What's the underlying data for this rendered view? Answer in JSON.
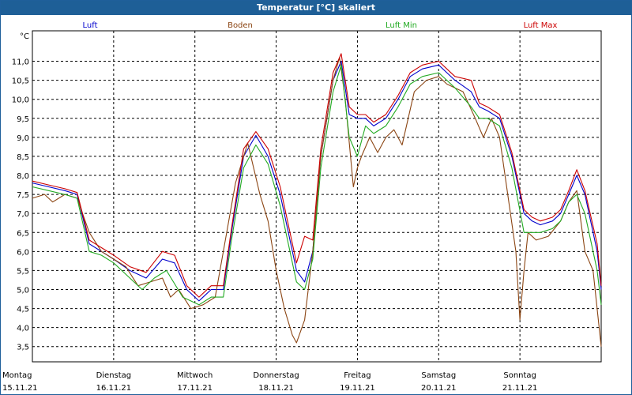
{
  "chart_data": {
    "type": "line",
    "title": "Temperatur [°C] skaliert",
    "ylabel": "°C",
    "ylim": [
      3.1,
      11.8
    ],
    "yticks": [
      "11,0",
      "10,5",
      "10,0",
      "9,5",
      "9,0",
      "8,5",
      "8,0",
      "7,5",
      "7,0",
      "6,5",
      "6,0",
      "5,5",
      "5,0",
      "4,5",
      "4,0",
      "3,5"
    ],
    "ytick_values": [
      11.0,
      10.5,
      10.0,
      9.5,
      9.0,
      8.5,
      8.0,
      7.5,
      7.0,
      6.5,
      6.0,
      5.5,
      5.0,
      4.5,
      4.0,
      3.5
    ],
    "xlim": [
      0,
      7
    ],
    "days": [
      {
        "day": "Montag",
        "date": "15.11.21",
        "x": 0
      },
      {
        "day": "Dienstag",
        "date": "16.11.21",
        "x": 1
      },
      {
        "day": "Mittwoch",
        "date": "17.11.21",
        "x": 2
      },
      {
        "day": "Donnerstag",
        "date": "18.11.21",
        "x": 3
      },
      {
        "day": "Freitag",
        "date": "19.11.21",
        "x": 4
      },
      {
        "day": "Samstag",
        "date": "20.11.21",
        "x": 5
      },
      {
        "day": "Sonntag",
        "date": "21.11.21",
        "x": 6
      }
    ],
    "series": [
      {
        "name": "Luft",
        "color": "#0000cc",
        "points": [
          [
            0,
            7.8
          ],
          [
            0.2,
            7.7
          ],
          [
            0.4,
            7.6
          ],
          [
            0.55,
            7.5
          ],
          [
            0.7,
            6.2
          ],
          [
            0.85,
            6.0
          ],
          [
            1.0,
            5.8
          ],
          [
            1.2,
            5.5
          ],
          [
            1.4,
            5.3
          ],
          [
            1.6,
            5.8
          ],
          [
            1.75,
            5.7
          ],
          [
            1.9,
            5.0
          ],
          [
            2.05,
            4.7
          ],
          [
            2.2,
            5.0
          ],
          [
            2.35,
            5.0
          ],
          [
            2.45,
            6.5
          ],
          [
            2.6,
            8.5
          ],
          [
            2.75,
            9.05
          ],
          [
            2.9,
            8.5
          ],
          [
            3.05,
            7.5
          ],
          [
            3.15,
            6.5
          ],
          [
            3.25,
            5.5
          ],
          [
            3.35,
            5.2
          ],
          [
            3.45,
            6.0
          ],
          [
            3.55,
            8.5
          ],
          [
            3.7,
            10.5
          ],
          [
            3.8,
            11.0
          ],
          [
            3.9,
            9.6
          ],
          [
            4.0,
            9.5
          ],
          [
            4.1,
            9.5
          ],
          [
            4.2,
            9.3
          ],
          [
            4.35,
            9.5
          ],
          [
            4.5,
            10.0
          ],
          [
            4.65,
            10.6
          ],
          [
            4.8,
            10.8
          ],
          [
            5.0,
            10.9
          ],
          [
            5.1,
            10.7
          ],
          [
            5.2,
            10.5
          ],
          [
            5.4,
            10.2
          ],
          [
            5.5,
            9.8
          ],
          [
            5.6,
            9.7
          ],
          [
            5.75,
            9.5
          ],
          [
            5.9,
            8.5
          ],
          [
            6.05,
            7.0
          ],
          [
            6.15,
            6.8
          ],
          [
            6.25,
            6.7
          ],
          [
            6.4,
            6.8
          ],
          [
            6.5,
            7.0
          ],
          [
            6.6,
            7.5
          ],
          [
            6.7,
            8.0
          ],
          [
            6.8,
            7.5
          ],
          [
            6.95,
            6.0
          ],
          [
            7.0,
            5.0
          ]
        ]
      },
      {
        "name": "Boden",
        "color": "#8b4513",
        "points": [
          [
            0,
            7.4
          ],
          [
            0.15,
            7.5
          ],
          [
            0.25,
            7.3
          ],
          [
            0.4,
            7.5
          ],
          [
            0.55,
            7.4
          ],
          [
            0.7,
            6.5
          ],
          [
            0.85,
            6.0
          ],
          [
            1.0,
            5.8
          ],
          [
            1.15,
            5.6
          ],
          [
            1.3,
            5.1
          ],
          [
            1.45,
            5.2
          ],
          [
            1.6,
            5.3
          ],
          [
            1.7,
            4.8
          ],
          [
            1.8,
            5.0
          ],
          [
            1.95,
            4.5
          ],
          [
            2.1,
            4.6
          ],
          [
            2.25,
            4.8
          ],
          [
            2.35,
            6.0
          ],
          [
            2.5,
            7.8
          ],
          [
            2.65,
            8.85
          ],
          [
            2.8,
            7.5
          ],
          [
            2.9,
            6.8
          ],
          [
            3.0,
            5.5
          ],
          [
            3.1,
            4.5
          ],
          [
            3.2,
            3.8
          ],
          [
            3.25,
            3.6
          ],
          [
            3.35,
            4.2
          ],
          [
            3.45,
            6.0
          ],
          [
            3.55,
            8.5
          ],
          [
            3.7,
            10.5
          ],
          [
            3.78,
            11.1
          ],
          [
            3.85,
            10.0
          ],
          [
            3.95,
            7.7
          ],
          [
            4.0,
            8.2
          ],
          [
            4.05,
            8.5
          ],
          [
            4.15,
            9.0
          ],
          [
            4.25,
            8.6
          ],
          [
            4.35,
            9.0
          ],
          [
            4.45,
            9.2
          ],
          [
            4.55,
            8.8
          ],
          [
            4.7,
            10.2
          ],
          [
            4.85,
            10.5
          ],
          [
            5.0,
            10.6
          ],
          [
            5.1,
            10.4
          ],
          [
            5.2,
            10.3
          ],
          [
            5.3,
            10.2
          ],
          [
            5.45,
            9.5
          ],
          [
            5.55,
            9.0
          ],
          [
            5.65,
            9.5
          ],
          [
            5.75,
            9.0
          ],
          [
            5.85,
            7.5
          ],
          [
            5.95,
            6.0
          ],
          [
            6.0,
            4.2
          ],
          [
            6.05,
            5.5
          ],
          [
            6.1,
            6.5
          ],
          [
            6.2,
            6.3
          ],
          [
            6.35,
            6.4
          ],
          [
            6.5,
            6.8
          ],
          [
            6.6,
            7.3
          ],
          [
            6.7,
            7.6
          ],
          [
            6.8,
            6.0
          ],
          [
            6.9,
            5.5
          ],
          [
            7.0,
            3.5
          ]
        ]
      },
      {
        "name": "Luft Min",
        "color": "#22aa22",
        "points": [
          [
            0,
            7.7
          ],
          [
            0.2,
            7.6
          ],
          [
            0.4,
            7.5
          ],
          [
            0.55,
            7.4
          ],
          [
            0.7,
            6.0
          ],
          [
            0.85,
            5.9
          ],
          [
            1.0,
            5.7
          ],
          [
            1.2,
            5.3
          ],
          [
            1.35,
            5.0
          ],
          [
            1.5,
            5.3
          ],
          [
            1.65,
            5.5
          ],
          [
            1.85,
            4.8
          ],
          [
            2.05,
            4.6
          ],
          [
            2.2,
            4.8
          ],
          [
            2.35,
            4.8
          ],
          [
            2.45,
            6.3
          ],
          [
            2.6,
            8.2
          ],
          [
            2.75,
            8.8
          ],
          [
            2.9,
            8.3
          ],
          [
            3.05,
            7.2
          ],
          [
            3.15,
            6.2
          ],
          [
            3.25,
            5.2
          ],
          [
            3.35,
            5.0
          ],
          [
            3.45,
            5.8
          ],
          [
            3.55,
            8.2
          ],
          [
            3.7,
            10.2
          ],
          [
            3.8,
            10.9
          ],
          [
            3.9,
            9.0
          ],
          [
            4.0,
            8.5
          ],
          [
            4.1,
            9.3
          ],
          [
            4.2,
            9.1
          ],
          [
            4.35,
            9.3
          ],
          [
            4.5,
            9.8
          ],
          [
            4.65,
            10.4
          ],
          [
            4.8,
            10.6
          ],
          [
            5.0,
            10.7
          ],
          [
            5.1,
            10.5
          ],
          [
            5.2,
            10.3
          ],
          [
            5.4,
            9.8
          ],
          [
            5.5,
            9.5
          ],
          [
            5.6,
            9.5
          ],
          [
            5.75,
            9.3
          ],
          [
            5.9,
            8.2
          ],
          [
            6.05,
            6.5
          ],
          [
            6.15,
            6.5
          ],
          [
            6.25,
            6.5
          ],
          [
            6.4,
            6.6
          ],
          [
            6.5,
            6.8
          ],
          [
            6.6,
            7.3
          ],
          [
            6.7,
            7.5
          ],
          [
            6.8,
            7.0
          ],
          [
            6.95,
            5.5
          ],
          [
            7.0,
            4.6
          ]
        ]
      },
      {
        "name": "Luft Max",
        "color": "#cc0000",
        "points": [
          [
            0,
            7.85
          ],
          [
            0.2,
            7.75
          ],
          [
            0.4,
            7.65
          ],
          [
            0.55,
            7.55
          ],
          [
            0.7,
            6.3
          ],
          [
            0.85,
            6.1
          ],
          [
            1.0,
            5.9
          ],
          [
            1.2,
            5.6
          ],
          [
            1.4,
            5.45
          ],
          [
            1.6,
            6.0
          ],
          [
            1.75,
            5.9
          ],
          [
            1.9,
            5.1
          ],
          [
            2.05,
            4.8
          ],
          [
            2.2,
            5.1
          ],
          [
            2.35,
            5.1
          ],
          [
            2.45,
            6.6
          ],
          [
            2.6,
            8.7
          ],
          [
            2.75,
            9.15
          ],
          [
            2.9,
            8.7
          ],
          [
            3.05,
            7.7
          ],
          [
            3.15,
            6.7
          ],
          [
            3.25,
            5.7
          ],
          [
            3.35,
            6.4
          ],
          [
            3.45,
            6.3
          ],
          [
            3.55,
            8.7
          ],
          [
            3.7,
            10.7
          ],
          [
            3.8,
            11.2
          ],
          [
            3.9,
            9.8
          ],
          [
            4.0,
            9.6
          ],
          [
            4.1,
            9.6
          ],
          [
            4.2,
            9.4
          ],
          [
            4.35,
            9.6
          ],
          [
            4.5,
            10.1
          ],
          [
            4.65,
            10.7
          ],
          [
            4.8,
            10.9
          ],
          [
            5.0,
            11.0
          ],
          [
            5.1,
            10.8
          ],
          [
            5.2,
            10.6
          ],
          [
            5.4,
            10.5
          ],
          [
            5.5,
            9.9
          ],
          [
            5.6,
            9.8
          ],
          [
            5.75,
            9.6
          ],
          [
            5.9,
            8.6
          ],
          [
            6.05,
            7.1
          ],
          [
            6.15,
            6.9
          ],
          [
            6.25,
            6.8
          ],
          [
            6.4,
            6.9
          ],
          [
            6.5,
            7.1
          ],
          [
            6.6,
            7.6
          ],
          [
            6.7,
            8.15
          ],
          [
            6.8,
            7.6
          ],
          [
            6.95,
            6.2
          ],
          [
            7.0,
            5.1
          ]
        ]
      }
    ]
  }
}
